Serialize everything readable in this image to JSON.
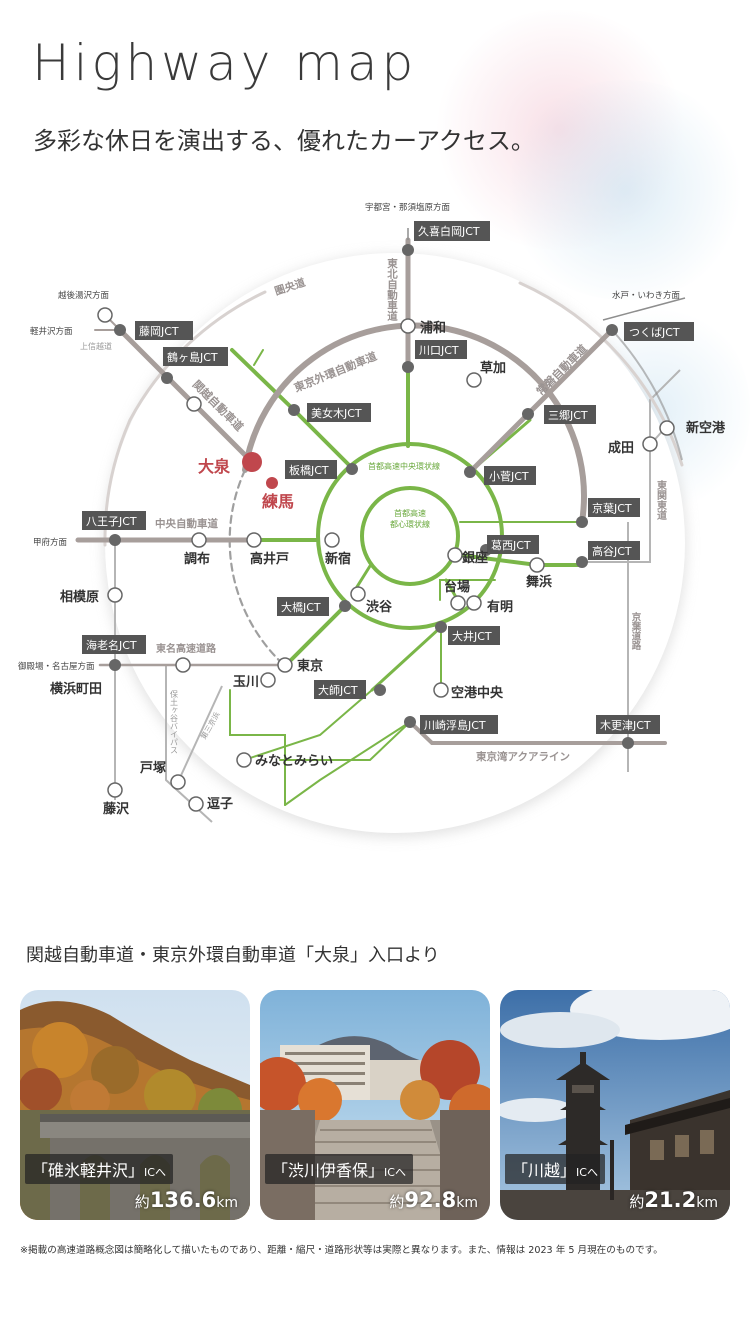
{
  "header": {
    "title": "Highway map",
    "subtitle": "多彩な休日を演出する、優れたカーアクセス。"
  },
  "map": {
    "directions": {
      "utsunomiya": "宇都宮・那須塩原方面",
      "echigo": "越後湯沢方面",
      "karuizawa": "軽井沢方面",
      "mito": "水戸・いわき方面",
      "kofu": "甲府方面",
      "gotenba": "御殿場・名古屋方面"
    },
    "roads": {
      "kenodo": "圏央道",
      "tohoku": "東北自動車道",
      "joban": "常磐自動車道",
      "higashikanto": "東関東道",
      "gaikan": "東京外環自動車道",
      "kanetsu": "関越自動車道",
      "joshinetsu": "上信越道",
      "chuo": "中央自動車道",
      "tomei": "東名高速道路",
      "central_circular": "首都高速中央環状線",
      "inner_circular_1": "首都高速",
      "inner_circular_2": "都心環状線",
      "keiyo": "京葉道路",
      "aqualine": "東京湾アクアライン",
      "hodogaya": "保土ヶ谷バイパス",
      "daisan_keihin": "第三京浜"
    },
    "junctions": {
      "kuki": "久喜白岡JCT",
      "fujioka": "藤岡JCT",
      "tsurugashima": "鶴ヶ島JCT",
      "tsukuba": "つくばJCT",
      "kawaguchi": "川口JCT",
      "bijogi": "美女木JCT",
      "misato": "三郷JCT",
      "itabashi": "板橋JCT",
      "kosuge": "小菅JCT",
      "keiyo": "京葉JCT",
      "hachioji": "八王子JCT",
      "kasai": "葛西JCT",
      "koya": "高谷JCT",
      "ohashi": "大橋JCT",
      "oi": "大井JCT",
      "ebina": "海老名JCT",
      "daishi": "大師JCT",
      "kawasaki": "川崎浮島JCT",
      "kisarazu": "木更津JCT"
    },
    "places": {
      "oizumi": "大泉",
      "nerima": "練馬",
      "urawa": "浦和",
      "soka": "草加",
      "narita": "成田",
      "shinkuko": "新空港",
      "chofu": "調布",
      "takaido": "高井戸",
      "shinjuku": "新宿",
      "ginza": "銀座",
      "maihama": "舞浜",
      "sagamihara": "相模原",
      "shibuya": "渋谷",
      "daiba": "台場",
      "ariake": "有明",
      "tokyo": "東京",
      "tamagawa": "玉川",
      "yokohamamachida": "横浜町田",
      "kuko_chuo": "空港中央",
      "minatomirai": "みなとみらい",
      "totsuka": "戸塚",
      "zushi": "逗子",
      "fujisawa": "藤沢"
    }
  },
  "access": {
    "title": "関越自動車道・東京外環自動車道「大泉」入口より",
    "cards": [
      {
        "name": "「碓氷軽井沢」",
        "suffix": "ICへ",
        "approx": "約",
        "value": "136.6",
        "unit": "km"
      },
      {
        "name": "「渋川伊香保」",
        "suffix": "ICへ",
        "approx": "約",
        "value": "92.8",
        "unit": "km"
      },
      {
        "name": "「川越」",
        "suffix": "ICへ",
        "approx": "約",
        "value": "21.2",
        "unit": "km"
      }
    ]
  },
  "footnote": "※掲載の高速道路概念図は簡略化して描いたものであり、距離・縮尺・道路形状等は実際と異なります。また、情報は 2023 年 5 月現在のものです。",
  "colors": {
    "green": "#7ab648",
    "grey_road": "#a79e9b",
    "dark_road": "#777777",
    "highlight": "#c0474d",
    "label_bg": "#555555"
  }
}
